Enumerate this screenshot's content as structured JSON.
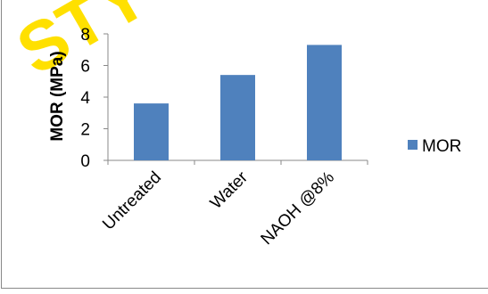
{
  "chart_data": {
    "type": "bar",
    "title": "",
    "xlabel": "",
    "ylabel": "MOR (MPa)",
    "categories": [
      "Untreated",
      "Water",
      "NAOH @8%"
    ],
    "series": [
      {
        "name": "MOR",
        "values": [
          3.6,
          5.4,
          7.3
        ],
        "color": "#4F81BD"
      }
    ],
    "ylim": [
      0,
      8
    ],
    "yticks": [
      0,
      2,
      4,
      6,
      8
    ],
    "grid": false,
    "legend_position": "right",
    "xtick_rotation_deg": -45
  },
  "watermark": {
    "text": "STYO",
    "color": "#FFE000"
  },
  "colors": {
    "bar": "#4F81BD",
    "axis": "#888888",
    "border": "#888888",
    "text": "#000000"
  }
}
